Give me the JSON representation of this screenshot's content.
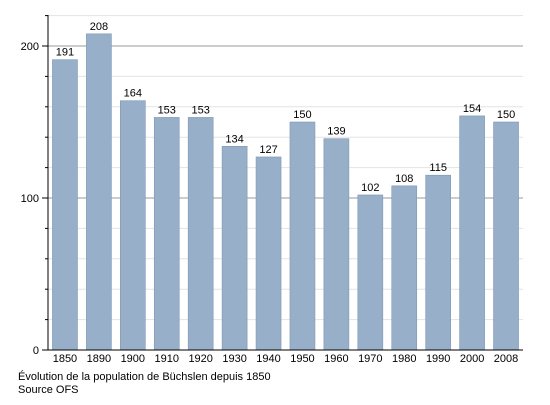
{
  "chart_data": {
    "type": "bar",
    "categories": [
      "1850",
      "1890",
      "1900",
      "1910",
      "1920",
      "1930",
      "1940",
      "1950",
      "1960",
      "1970",
      "1980",
      "1990",
      "2000",
      "2008"
    ],
    "values": [
      191,
      208,
      164,
      153,
      153,
      134,
      127,
      150,
      139,
      102,
      108,
      115,
      154,
      150
    ],
    "title": "",
    "xlabel": "",
    "ylabel": "",
    "ylim": [
      0,
      200
    ],
    "yticks": [
      0,
      100,
      200
    ],
    "grid": true,
    "bar_color": "#97afc9",
    "bar_edge_color": "#7e97b3",
    "caption": "Évolution de la population de Büchslen depuis 1850",
    "source": "Source OFS"
  }
}
